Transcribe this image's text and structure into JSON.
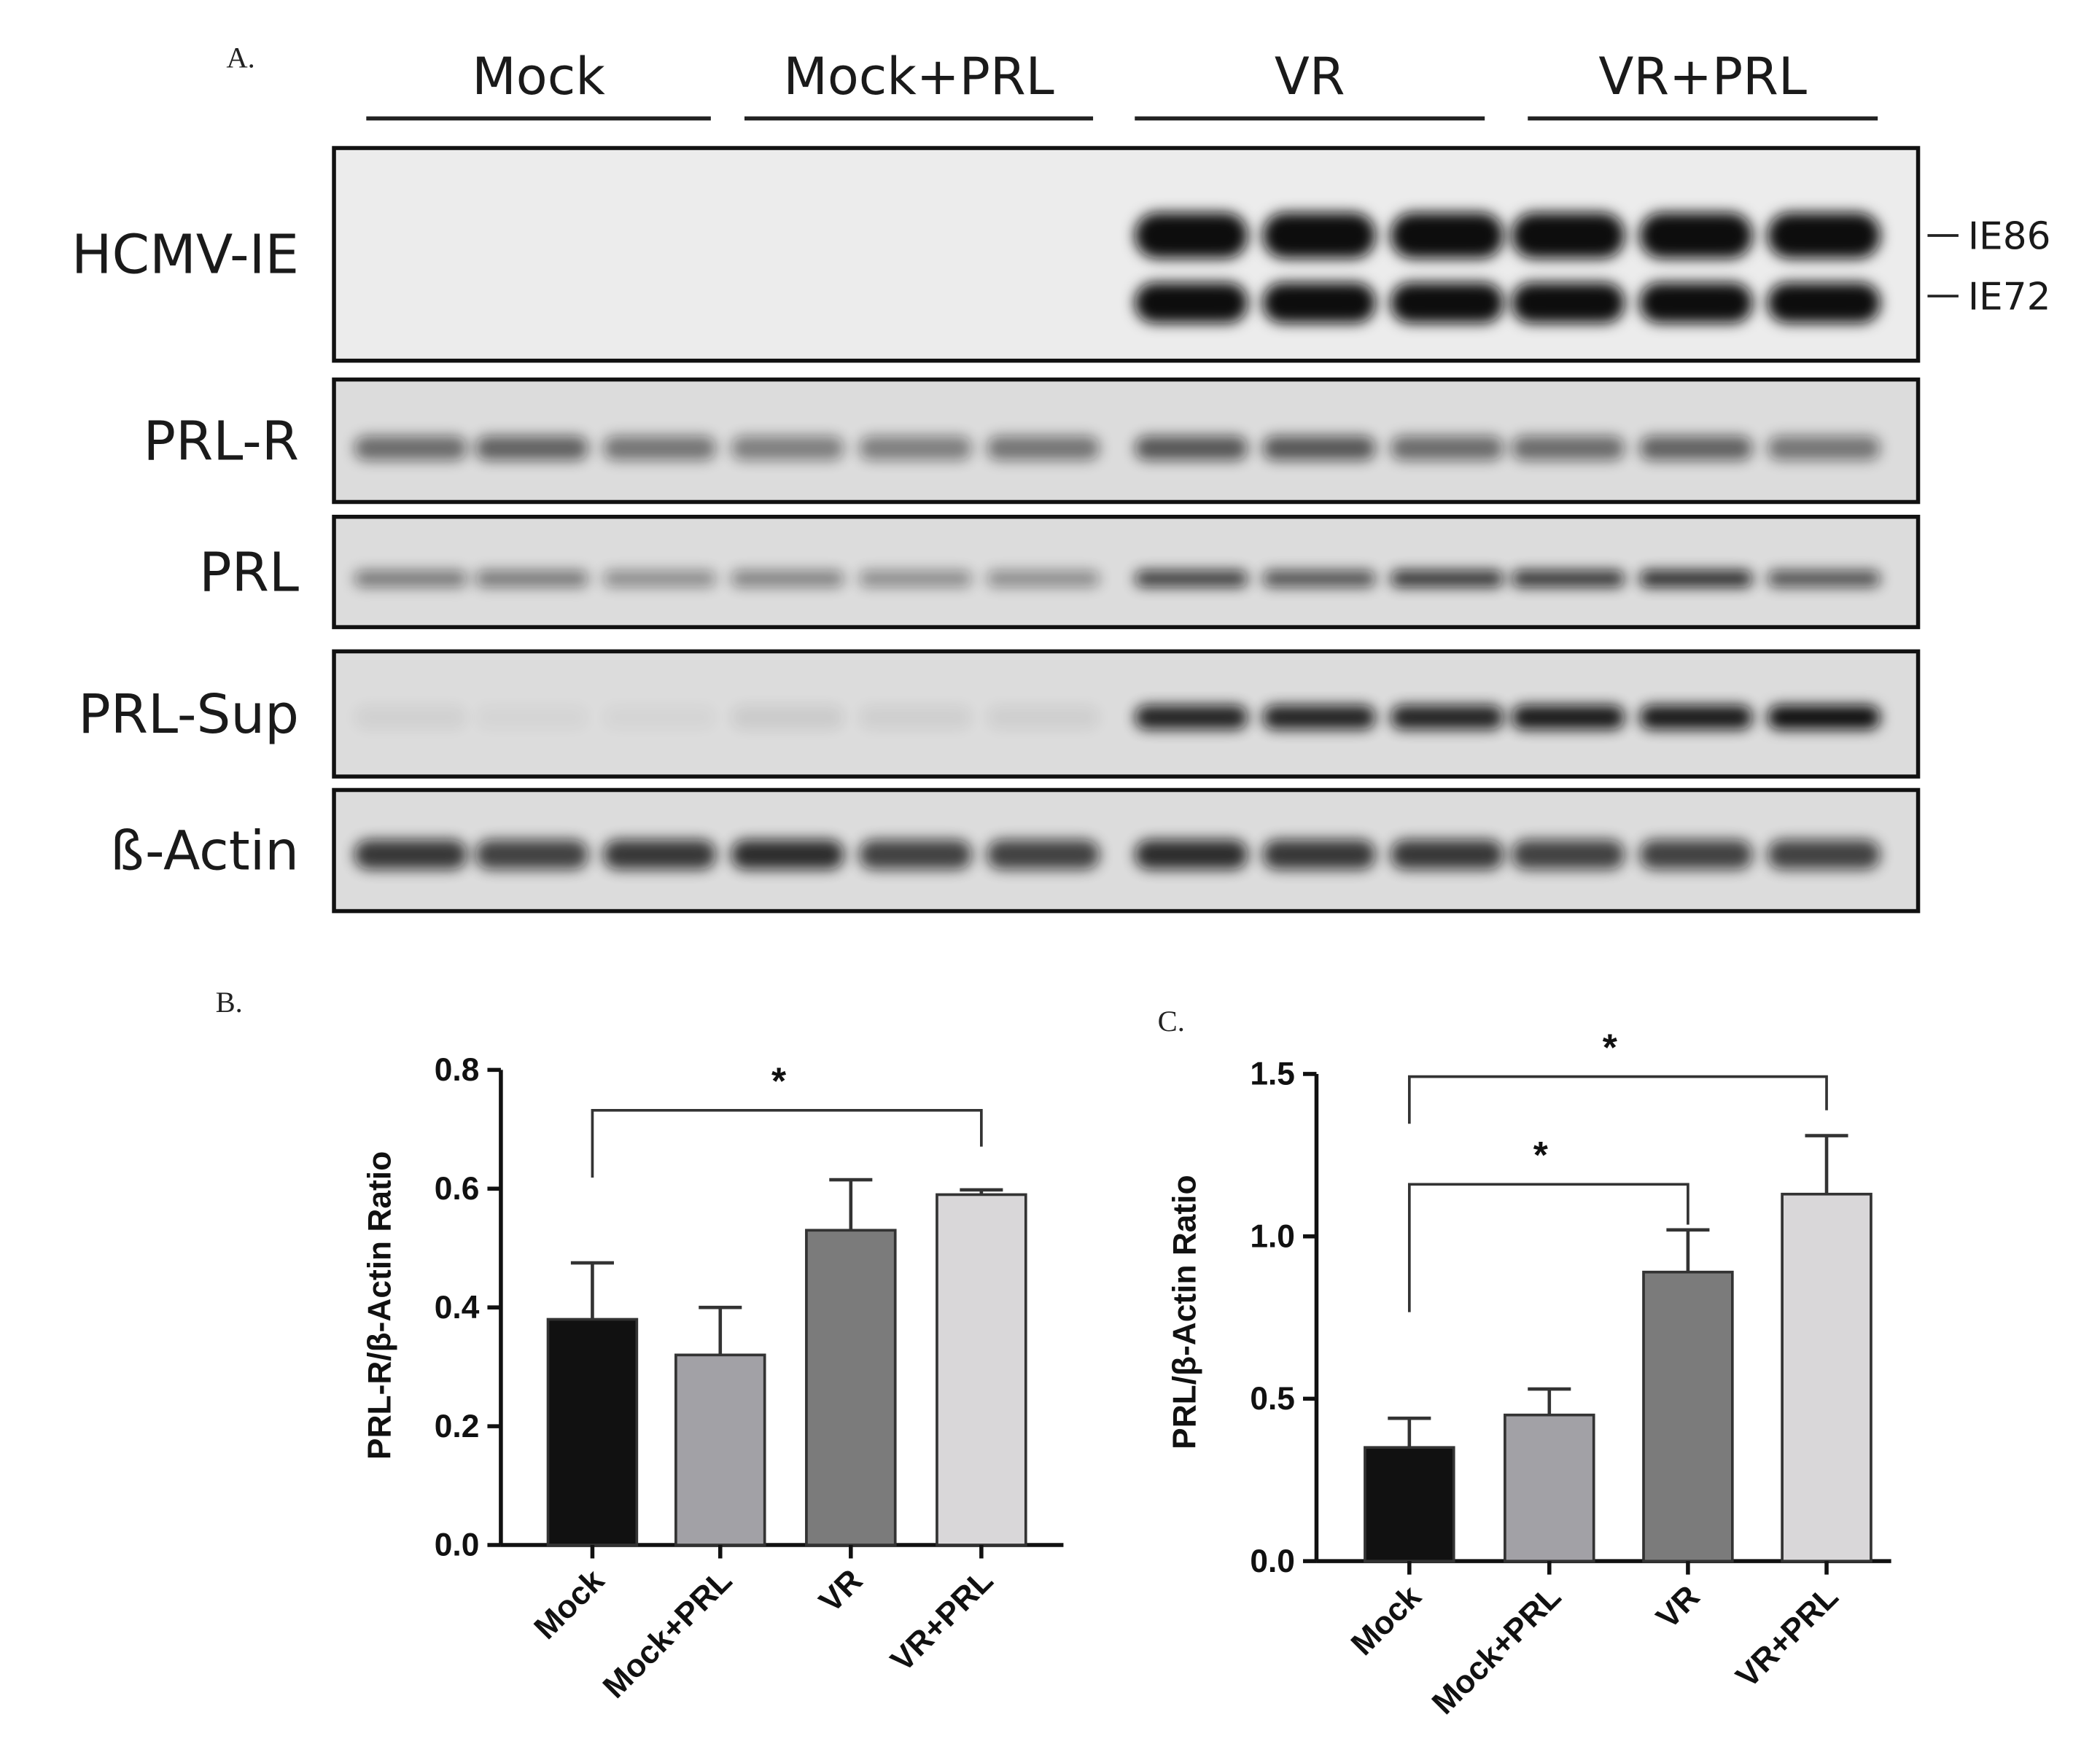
{
  "panel_a": {
    "label": "A.",
    "groups": [
      "Mock",
      "Mock+PRL",
      "VR",
      "VR+PRL"
    ],
    "rows": [
      "HCMV-IE",
      "PRL-R",
      "PRL",
      "PRL-Sup",
      "ß-Actin"
    ],
    "band_labels": [
      "IE86",
      "IE72"
    ]
  },
  "chart_data": [
    {
      "type": "bar",
      "panel": "B.",
      "y_label": "PRL-R/β-Actin Ratio",
      "categories": [
        "Mock",
        "Mock+PRL",
        "VR",
        "VR+PRL"
      ],
      "values": [
        0.38,
        0.32,
        0.53,
        0.59
      ],
      "errors": [
        0.095,
        0.08,
        0.085,
        0.008
      ],
      "colors": [
        "#111111",
        "#a2a1a6",
        "#7b7b7b",
        "#d9d7d9"
      ],
      "ylim": [
        0,
        0.8
      ],
      "yticks": [
        {
          "value": 0,
          "label": "0.0"
        },
        0.2,
        0.4,
        0.6,
        0.8
      ],
      "significance": [
        {
          "label": "*",
          "between": [
            "Mock",
            "VR+PRL"
          ]
        }
      ]
    },
    {
      "type": "bar",
      "panel": "C.",
      "y_label": "PRL/β-Actin Ratio",
      "categories": [
        "Mock",
        "Mock+PRL",
        "VR",
        "VR+PRL"
      ],
      "values": [
        0.35,
        0.45,
        0.89,
        1.13
      ],
      "errors": [
        0.09,
        0.08,
        0.13,
        0.18
      ],
      "colors": [
        "#111111",
        "#a2a1a6",
        "#7b7b7b",
        "#d9d7d9"
      ],
      "ylim": [
        0,
        1.5
      ],
      "yticks": [
        {
          "value": 0,
          "label": "0.0"
        },
        0.5,
        {
          "value": 1,
          "label": "1.0"
        },
        1.5
      ],
      "significance": [
        {
          "label": "*",
          "between": [
            "Mock",
            "VR+PRL"
          ]
        },
        {
          "label": "*",
          "between": [
            "Mock",
            "VR"
          ]
        }
      ]
    }
  ]
}
